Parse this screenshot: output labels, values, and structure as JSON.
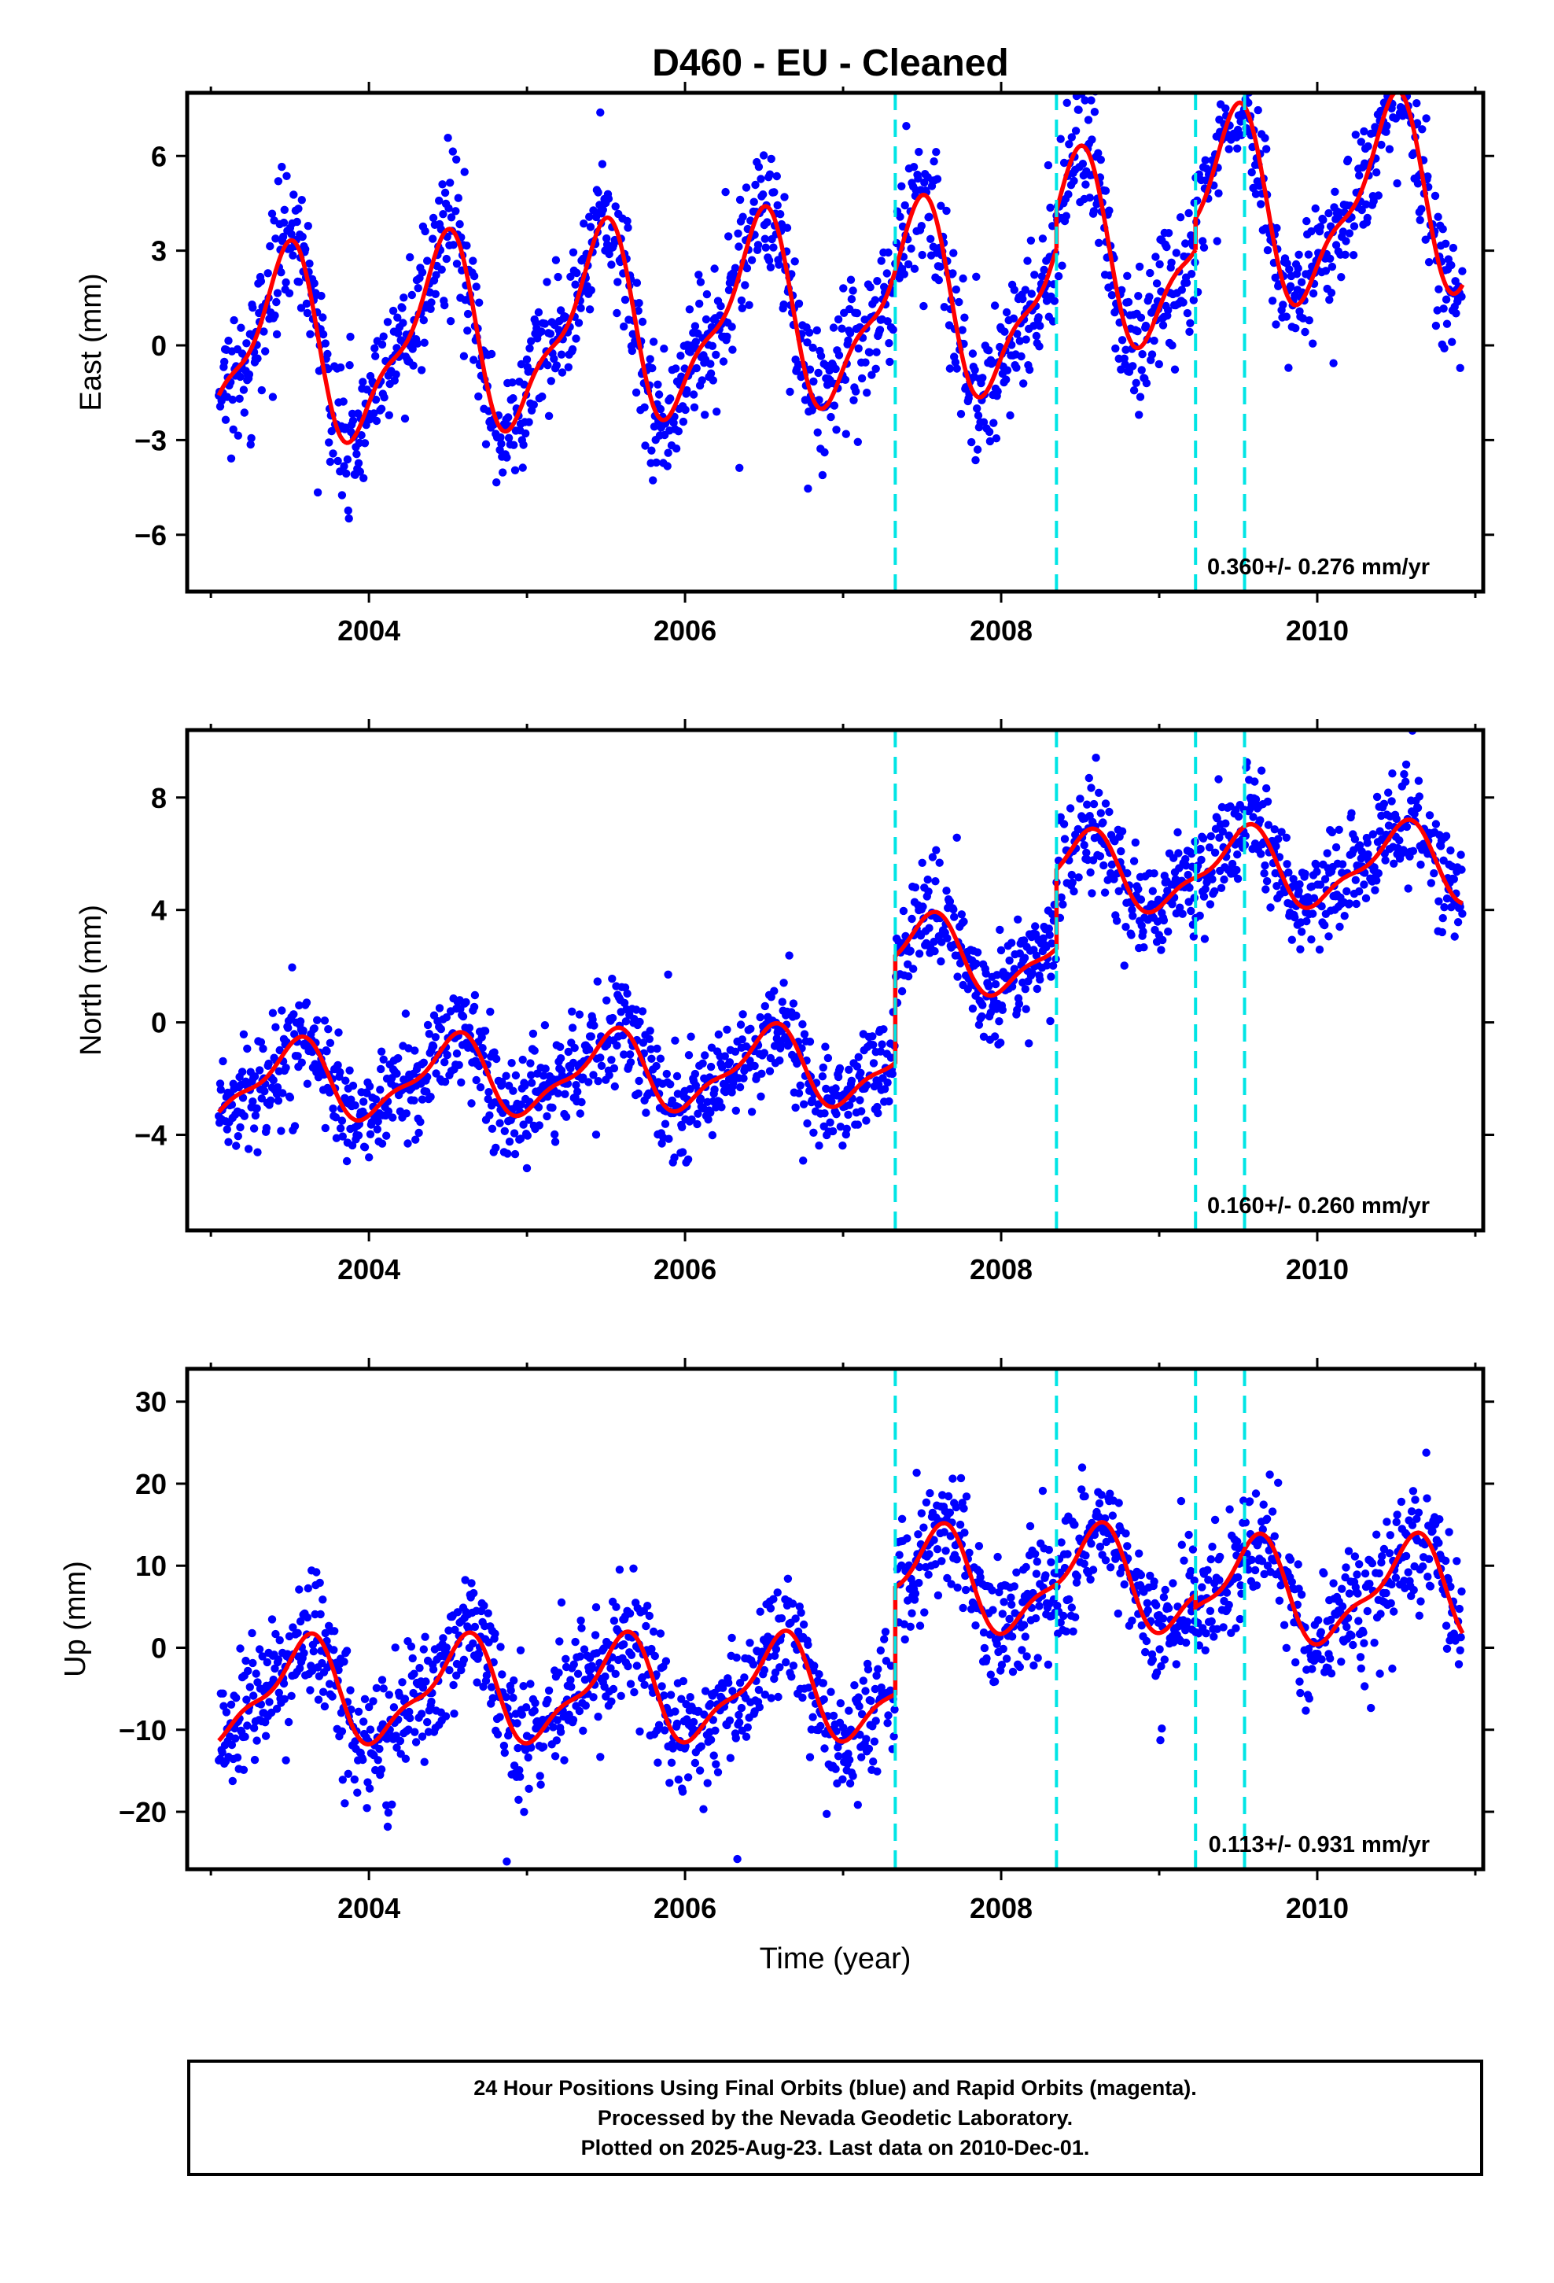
{
  "page_title": "D460  - EU - Cleaned",
  "footer": {
    "lines": [
      "24 Hour Positions Using Final Orbits (blue) and Rapid Orbits (magenta).",
      "Processed by the Nevada Geodetic Laboratory.",
      "Plotted on 2025-Aug-23. Last data on 2010-Dec-01."
    ]
  },
  "colors": {
    "data_points": "#0000ff",
    "model_line": "#ff0000",
    "event_lines": "#00e5e5",
    "frame": "#000000"
  },
  "chart_data": [
    {
      "type": "scatter",
      "title": "D460  - EU - Cleaned",
      "xlabel": "",
      "ylabel": "East (mm)",
      "xlim": [
        2002.85,
        2011.05
      ],
      "ylim": [
        -7.8,
        8.0
      ],
      "x_ticks": [
        2004,
        2006,
        2008,
        2010
      ],
      "y_ticks": [
        -6,
        -3,
        0,
        3,
        6
      ],
      "rate_text": "0.360+/- 0.276 mm/yr",
      "event_lines_x": [
        2007.33,
        2008.35,
        2009.23,
        2009.54
      ],
      "data_start": 2003.05,
      "data_end": 2010.92,
      "model": {
        "annual_amplitude": 2.8,
        "annual_peak": 2003.45,
        "trend_per_year": 0.36,
        "offset_at_start": -0.3,
        "steps": [
          {
            "x": 2008.35,
            "dy": 1.2
          },
          {
            "x": 2009.23,
            "dy": 1.0
          }
        ],
        "scatter_sigma": 1.05
      },
      "legend": "none",
      "grid": false
    },
    {
      "type": "scatter",
      "title": "",
      "xlabel": "",
      "ylabel": "North (mm)",
      "xlim": [
        2002.85,
        2011.05
      ],
      "ylim": [
        -7.4,
        10.4
      ],
      "x_ticks": [
        2004,
        2006,
        2008,
        2010
      ],
      "y_ticks": [
        -4,
        0,
        4,
        8
      ],
      "rate_text": "0.160+/- 0.260 mm/yr",
      "event_lines_x": [
        2007.33,
        2008.35,
        2009.23,
        2009.54
      ],
      "data_start": 2003.05,
      "data_end": 2010.92,
      "model": {
        "annual_amplitude": 1.3,
        "annual_peak": 2003.52,
        "trend_per_year": 0.16,
        "offset_at_start": -2.2,
        "steps": [
          {
            "x": 2007.33,
            "dy": 3.8
          },
          {
            "x": 2008.35,
            "dy": 2.8
          }
        ],
        "scatter_sigma": 0.95
      },
      "legend": "none",
      "grid": false
    },
    {
      "type": "scatter",
      "title": "",
      "xlabel": "Time (year)",
      "ylabel": "Up (mm)",
      "xlim": [
        2002.85,
        2011.05
      ],
      "ylim": [
        -27,
        34
      ],
      "x_ticks": [
        2004,
        2006,
        2008,
        2010
      ],
      "y_ticks": [
        -20,
        -10,
        0,
        10,
        20,
        30
      ],
      "rate_text": "0.113+/- 0.931 mm/yr",
      "event_lines_x": [
        2007.33,
        2008.35,
        2009.23,
        2009.54
      ],
      "data_start": 2003.05,
      "data_end": 2010.92,
      "model": {
        "annual_amplitude": 5.8,
        "annual_peak": 2003.58,
        "trend_per_year": 0.113,
        "offset_at_start": -5.5,
        "steps": [
          {
            "x": 2007.33,
            "dy": 13.0
          },
          {
            "x": 2009.23,
            "dy": -1.5
          }
        ],
        "scatter_sigma": 3.9
      },
      "legend": "none",
      "grid": false
    }
  ]
}
